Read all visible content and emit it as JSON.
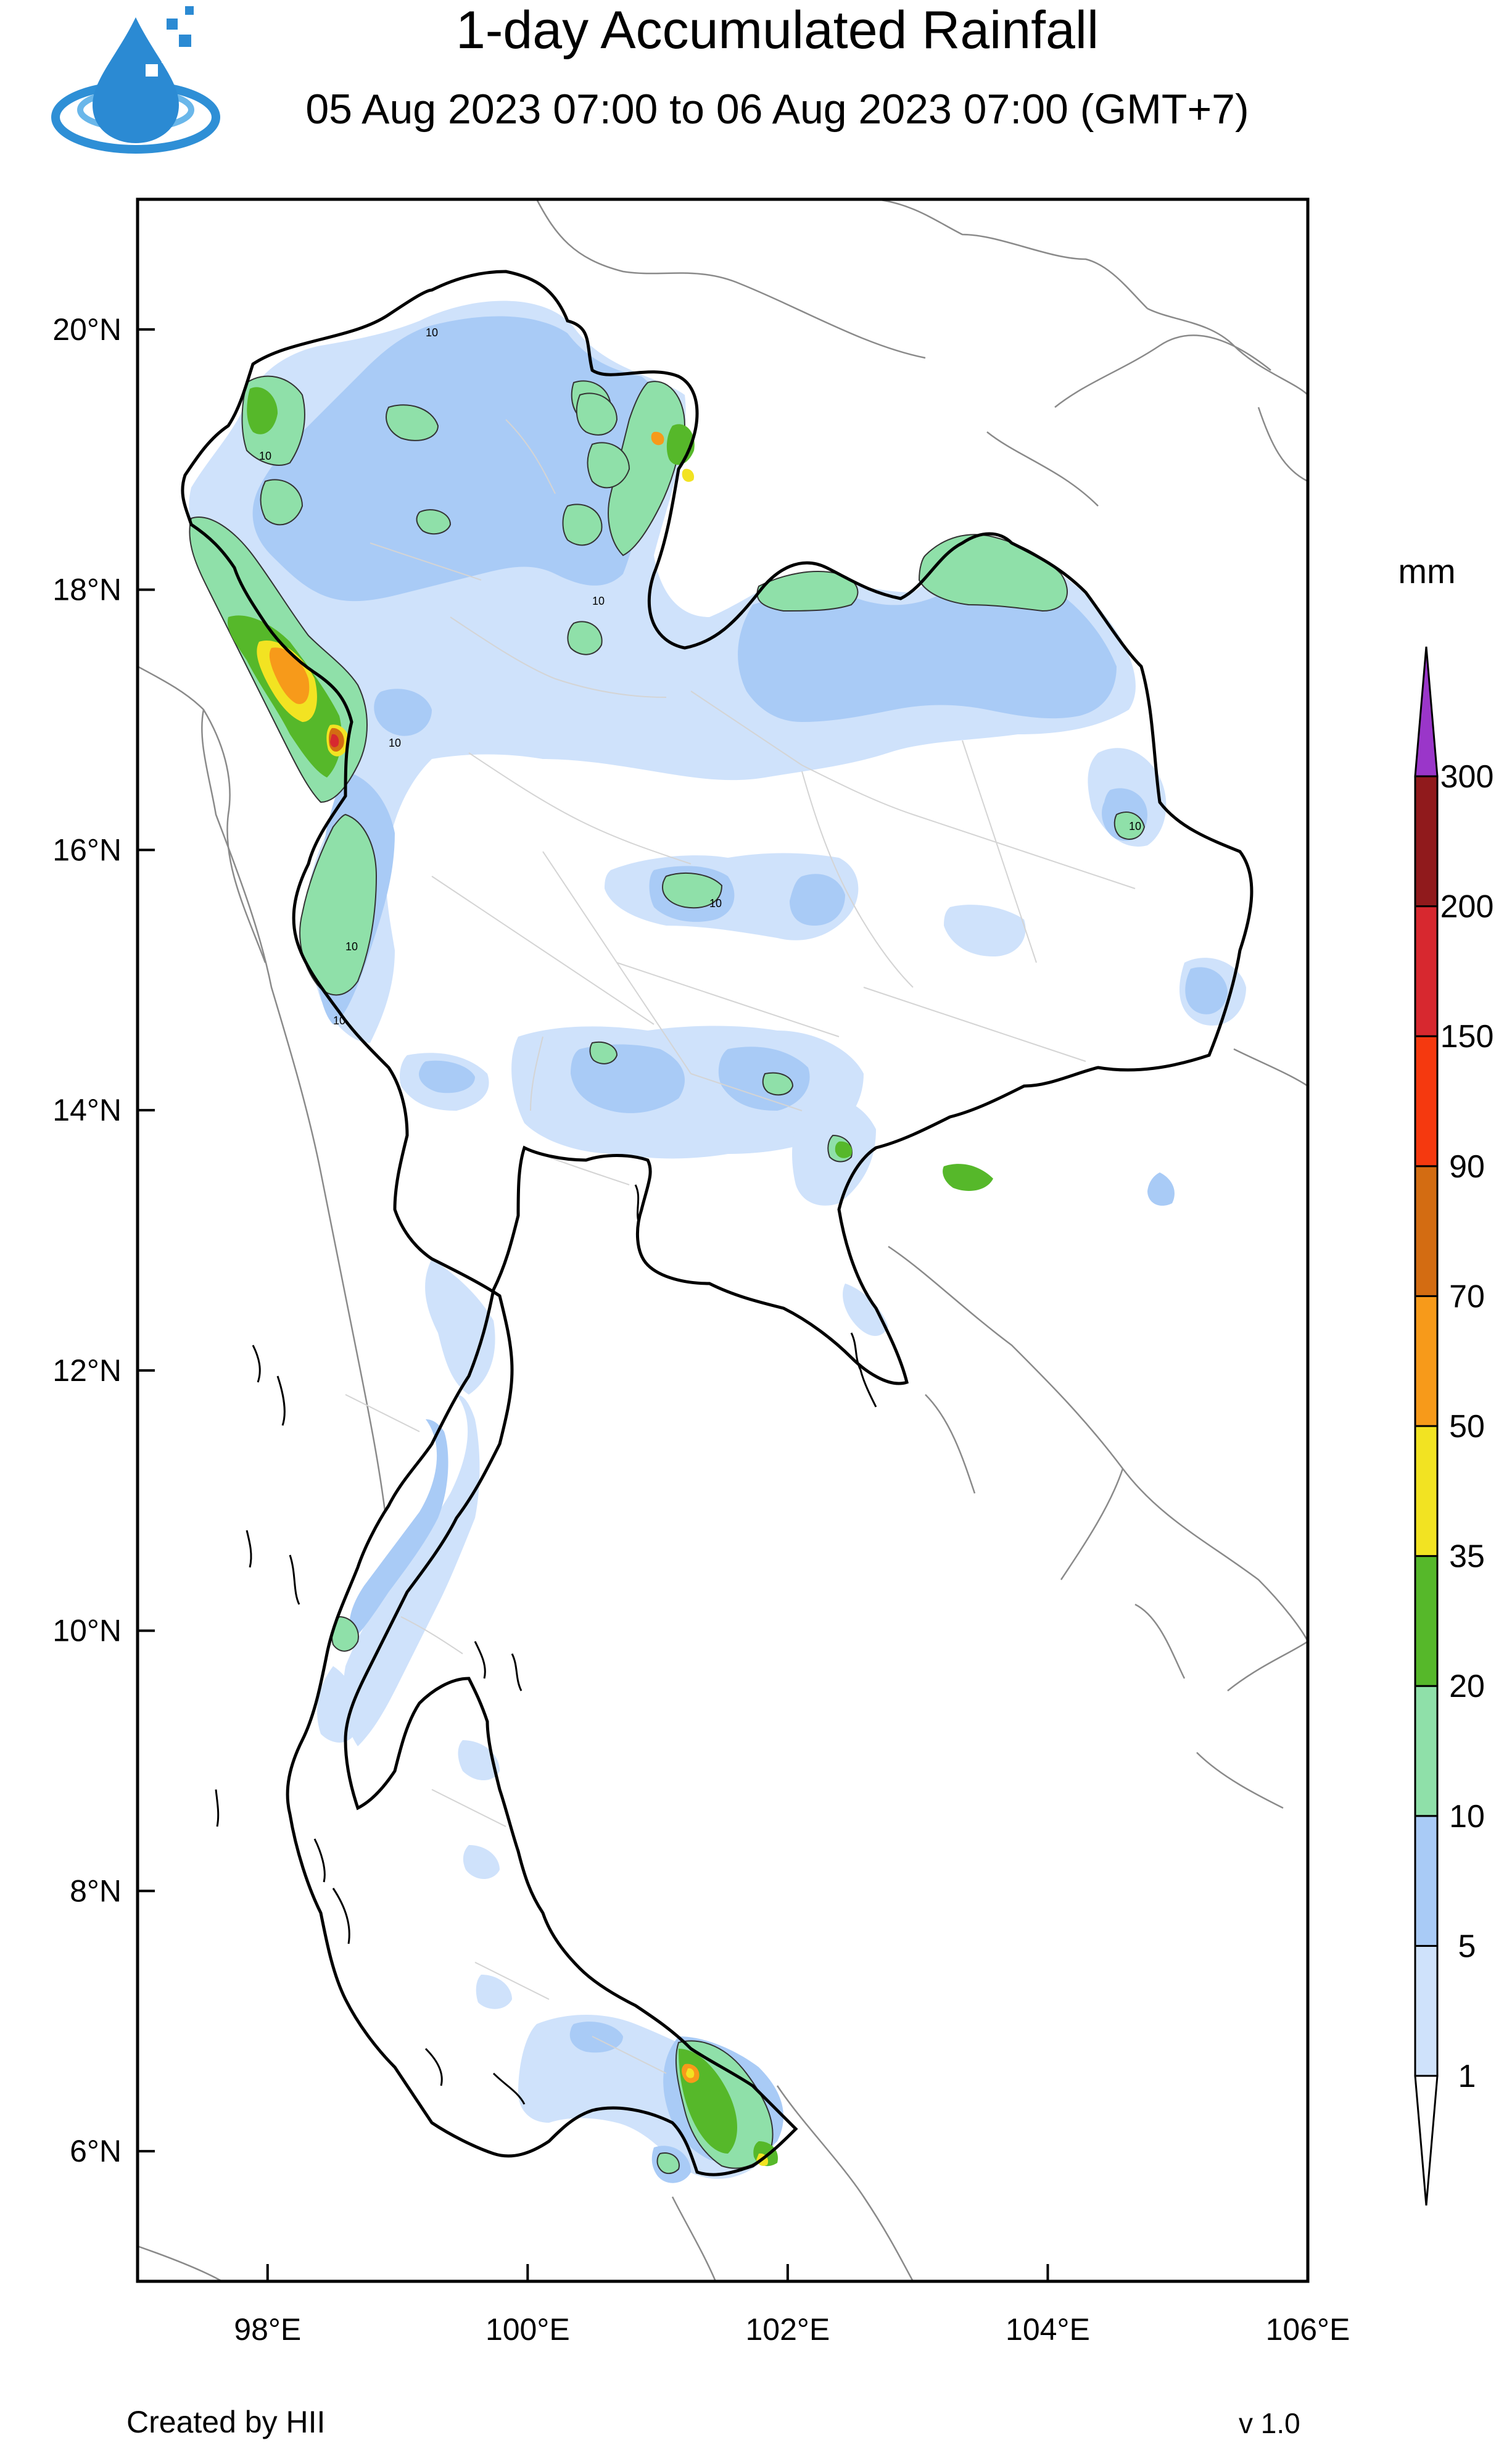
{
  "header": {
    "title": "1-day Accumulated Rainfall",
    "subtitle": "05 Aug 2023 07:00 to 06 Aug 2023 07:00 (GMT+7)",
    "logo": "hii-water-drop-logo"
  },
  "map": {
    "lon_ticks": [
      "98°E",
      "100°E",
      "102°E",
      "104°E",
      "106°E"
    ],
    "lat_ticks": [
      "20°N",
      "18°N",
      "16°N",
      "14°N",
      "12°N",
      "10°N",
      "8°N",
      "6°N"
    ],
    "lon_range": [
      97.0,
      106.0
    ],
    "lat_range": [
      5.0,
      21.0
    ],
    "contour_label": "10"
  },
  "legend": {
    "unit": "mm",
    "levels": [
      "1",
      "5",
      "10",
      "20",
      "35",
      "50",
      "70",
      "90",
      "150",
      "200",
      "300"
    ],
    "colors": [
      "#cfe2fb",
      "#a9cbf6",
      "#8fe0a9",
      "#56b82a",
      "#f2e322",
      "#f79a1a",
      "#d36c12",
      "#f5390f",
      "#d7282f",
      "#901a1c",
      "#9a36c9"
    ]
  },
  "footer": {
    "credit": "Created by HII",
    "version": "v 1.0"
  }
}
